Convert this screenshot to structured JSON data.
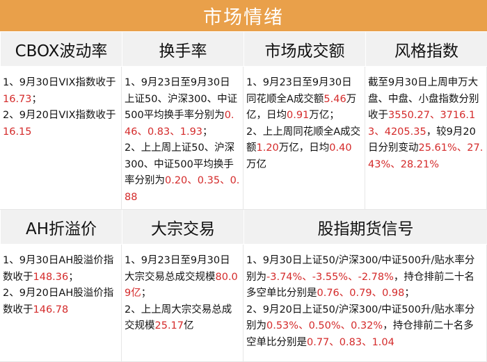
{
  "banner": {
    "title": "市场情绪"
  },
  "headers": {
    "cbox": "CBOX波动率",
    "turnover": "换手率",
    "volume": "市场成交额",
    "style": "风格指数",
    "ah": "AH折溢价",
    "block": "大宗交易",
    "futures": "股指期货信号"
  },
  "colors": {
    "banner": "#e9a04a",
    "header_bg": "#f1f1f1",
    "highlight": "#d42a2a"
  },
  "cbox": {
    "line1_a": "1、9月30日VIX指数收于",
    "line1_v": "16.73",
    "line1_b": "；",
    "line2_a": "2、9月20日VIX指数收于",
    "line2_v": "16.15"
  },
  "turnover": {
    "p1_a": "1、9月23日至9月30日上证50、沪深300、中证500平均换手率分别为",
    "p1_v": "0.46、0.83、1.93",
    "p1_b": "；",
    "p2_a": "2、上上周上证50、沪深300、中证500平均换手率分别为",
    "p2_v": "0.20、0.35、0.88"
  },
  "volume": {
    "p1_a": "1、9月23日至9月30日同花顺全A成交额",
    "p1_v1": "5.46",
    "p1_b": "万亿，日均",
    "p1_v2": "0.91",
    "p1_c": "万亿；",
    "p2_a": "2、上上周同花顺全A成交额",
    "p2_v1": "1.20",
    "p2_b": "万亿，日均",
    "p2_v2": "0.40",
    "p2_c": "万亿"
  },
  "style": {
    "p_a": "截至9月30日上周申万大盘、中盘、小盘指数分别收于",
    "p_v1": "3550.27、3716.13、4205.35",
    "p_b": "，较9月20日分别变动",
    "p_v2": "25.61%、27.43%、28.21%"
  },
  "ah": {
    "line1_a": "1、9月30日AH股溢价指数收于",
    "line1_v": "148.36",
    "line1_b": "；",
    "line2_a": "2、9月20日AH股溢价指数收于",
    "line2_v": "146.78"
  },
  "block": {
    "p1_a": "1、9月23日至9月30日大宗交易总成交规模",
    "p1_v": "80.09亿",
    "p1_b": "；",
    "p2_a": "2、上上周大宗交易总成交规模",
    "p2_v": "25.17",
    "p2_b": "亿"
  },
  "futures": {
    "p1_a": "1、9月30日上证50/沪深300/中证500升/贴水率分别为",
    "p1_v1": "-3.74%、-3.55%、-2.78%",
    "p1_b": "，持仓排前二十名多空单比分别是",
    "p1_v2": "0.76、0.79、0.98",
    "p1_c": "；",
    "p2_a": "2、9月20日上证50/沪深300/中证500升/贴水率分别为",
    "p2_v1": "0.53%、0.50%、0.32%",
    "p2_b": "，持仓排前二十名多空单比分别是",
    "p2_v2": "0.77、0.83、1.04"
  }
}
